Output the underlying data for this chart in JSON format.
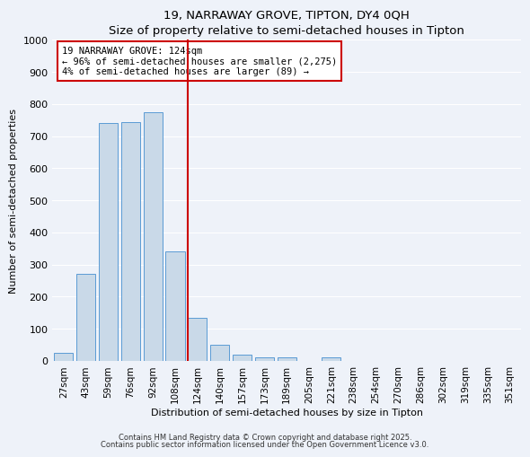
{
  "title": "19, NARRAWAY GROVE, TIPTON, DY4 0QH",
  "subtitle": "Size of property relative to semi-detached houses in Tipton",
  "xlabel": "Distribution of semi-detached houses by size in Tipton",
  "ylabel": "Number of semi-detached properties",
  "categories": [
    "27sqm",
    "43sqm",
    "59sqm",
    "76sqm",
    "92sqm",
    "108sqm",
    "124sqm",
    "140sqm",
    "157sqm",
    "173sqm",
    "189sqm",
    "205sqm",
    "221sqm",
    "238sqm",
    "254sqm",
    "270sqm",
    "286sqm",
    "302sqm",
    "319sqm",
    "335sqm",
    "351sqm"
  ],
  "values": [
    25,
    270,
    740,
    745,
    775,
    340,
    135,
    50,
    20,
    10,
    10,
    0,
    10,
    0,
    0,
    0,
    0,
    0,
    0,
    0,
    0
  ],
  "bar_color": "#c9d9e8",
  "bar_edge_color": "#5b9bd5",
  "vline_x_idx": 6,
  "vline_color": "#cc0000",
  "annotation_text": "19 NARRAWAY GROVE: 124sqm\n← 96% of semi-detached houses are smaller (2,275)\n4% of semi-detached houses are larger (89) →",
  "annotation_box_color": "#cc0000",
  "ylim": [
    0,
    1000
  ],
  "yticks": [
    0,
    100,
    200,
    300,
    400,
    500,
    600,
    700,
    800,
    900,
    1000
  ],
  "bg_color": "#eef2f9",
  "grid_color": "#ffffff",
  "footer1": "Contains HM Land Registry data © Crown copyright and database right 2025.",
  "footer2": "Contains public sector information licensed under the Open Government Licence v3.0."
}
